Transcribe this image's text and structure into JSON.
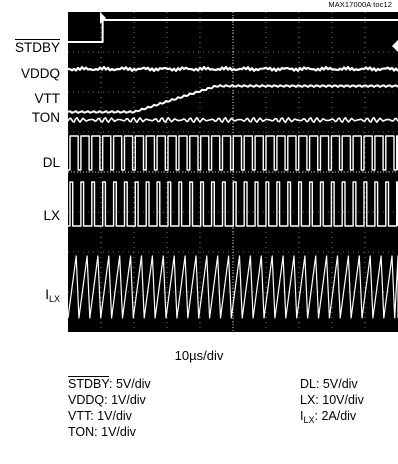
{
  "header": {
    "figure_id": "MAX17000A toc12"
  },
  "channels": [
    {
      "key": "stdby",
      "label": "STDBY",
      "overline": true
    },
    {
      "key": "vddq",
      "label": "VDDQ"
    },
    {
      "key": "vtt",
      "label": "VTT"
    },
    {
      "key": "ton",
      "label": "TON"
    },
    {
      "key": "dl",
      "label": "DL"
    },
    {
      "key": "lx",
      "label": "LX"
    },
    {
      "key": "ilx",
      "label": "I",
      "sub": "LX"
    }
  ],
  "timebase": "10µs/div",
  "legend_left": [
    {
      "name": "STDBY",
      "overline": true,
      "scale": ": 5V/div"
    },
    {
      "name": "VDDQ",
      "scale": ": 1V/div"
    },
    {
      "name": "VTT",
      "scale": ": 1V/div"
    },
    {
      "name": "TON",
      "scale": ": 1V/div"
    }
  ],
  "legend_right": [
    {
      "name": "DL",
      "scale": ": 5V/div"
    },
    {
      "name": "LX",
      "scale": ": 10V/div"
    },
    {
      "name": "I",
      "sub": "LX",
      "scale": ": 2A/div"
    }
  ],
  "colors": {
    "screen": "#000000",
    "trace": "#ffffff",
    "grid": "#ffffff"
  },
  "chart_data": {
    "type": "line",
    "x_unit": "µs",
    "x_div": 10,
    "grid": true,
    "series": [
      {
        "name": "STDBY",
        "shape": "step",
        "x": [
          0,
          10,
          11,
          100
        ],
        "y": [
          0,
          0,
          1,
          1
        ]
      },
      {
        "name": "VDDQ",
        "shape": "ramp",
        "x": [
          0,
          100
        ],
        "y": [
          1,
          1
        ]
      },
      {
        "name": "VTT",
        "shape": "ramp",
        "x": [
          0,
          20,
          45,
          100
        ],
        "y": [
          0,
          0,
          1,
          1
        ]
      },
      {
        "name": "TON",
        "shape": "noise",
        "x": [
          0,
          100
        ],
        "y": [
          0,
          0
        ]
      },
      {
        "name": "DL",
        "shape": "pulse",
        "period_us": 3.3,
        "duty": 0.75
      },
      {
        "name": "LX",
        "shape": "pulse",
        "period_us": 3.3,
        "duty": 0.25
      },
      {
        "name": "ILX",
        "shape": "sawtooth",
        "period_us": 3.3,
        "x": [
          0,
          100
        ],
        "amplitude": [
          1,
          1
        ]
      }
    ]
  }
}
